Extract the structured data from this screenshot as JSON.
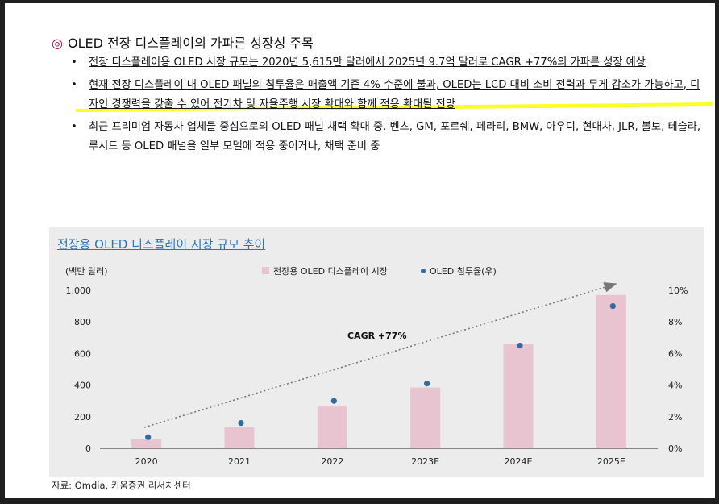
{
  "heading": {
    "mark": "◎",
    "title": "OLED 전장 디스플레이의 가파른 성장성 주목"
  },
  "bullets": [
    "전장 디스플레이용 OLED 시장 규모는 2020년 5,615만 달러에서 2025년 9.7억 달러로 CAGR +77%의 가파른 성장 예상",
    "현재 전장 디스플레이 내 OLED 패널의 침투율은 매출액 기준 4% 수준에 불과, OLED는 LCD 대비 소비 전력과 무게 감소가 가능하고, 디자인 경쟁력을 갖출 수 있어 전기차 및 자율주행 시장 확대와 함께 적용 확대될 전망",
    "최근 프리미엄 자동차 업체들 중심으로의 OLED 패널 채택 확대 중. 벤츠, GM, 포르쉐, 페라리, BMW, 아우디, 현대차, JLR, 볼보, 테슬라, 루시드 등 OLED 패널을 일부 모델에 적용 중이거나, 채택 준비 중"
  ],
  "source": "자료: Omdia, 키움증권 리서치센터",
  "colors": {
    "bar": "#e8c4d1",
    "dot": "#2e6da4",
    "title": "#2e74b5",
    "highlight": "#ffff00",
    "mark": "#b0005a"
  },
  "chart_data": {
    "type": "bar",
    "title": "전장용 OLED 디스플레이 시장 규모 추이",
    "left_unit": "(백만 달러)",
    "categories": [
      "2020",
      "2021",
      "2022",
      "2023E",
      "2024E",
      "2025E"
    ],
    "series": [
      {
        "name": "전장용 OLED 디스플레이 시장",
        "kind": "bar",
        "axis": "left",
        "values": [
          56,
          135,
          265,
          385,
          660,
          970
        ]
      },
      {
        "name": "OLED 침투율(우)",
        "kind": "scatter",
        "axis": "right",
        "values": [
          0.7,
          1.6,
          3.0,
          4.1,
          6.5,
          9.0
        ]
      }
    ],
    "y_left": {
      "min": 0,
      "max": 1000,
      "ticks": [
        "0",
        "200",
        "400",
        "600",
        "800",
        "1,000"
      ]
    },
    "y_right": {
      "min": 0,
      "max": 10,
      "ticks": [
        "0%",
        "2%",
        "4%",
        "6%",
        "8%",
        "10%"
      ]
    },
    "annotation": "CAGR +77%",
    "legend_position": "top"
  }
}
